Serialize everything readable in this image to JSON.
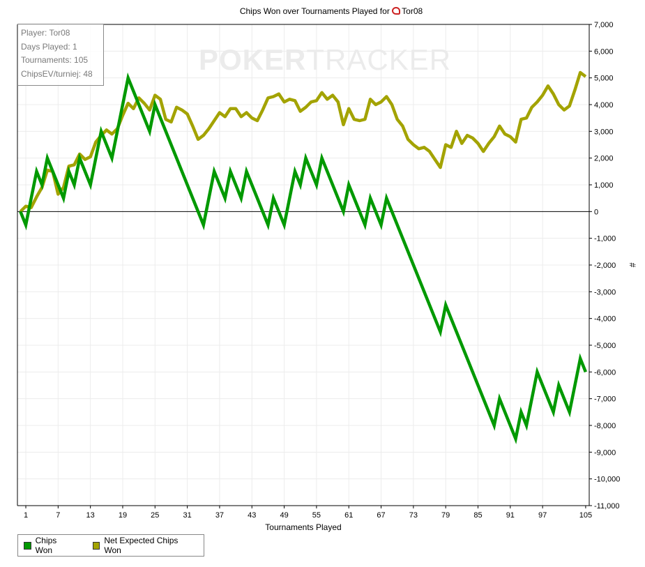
{
  "chart_data": {
    "type": "line",
    "title": "Chips Won over Tournaments Played for",
    "player_name": "Tor08",
    "xlabel": "Tournaments Played",
    "ylabel": "#",
    "xlim": [
      0,
      105
    ],
    "ylim": [
      -11000,
      7000
    ],
    "x_ticks": [
      1,
      7,
      13,
      19,
      25,
      31,
      37,
      43,
      49,
      55,
      61,
      67,
      73,
      79,
      85,
      91,
      97,
      105
    ],
    "y_ticks": [
      7000,
      6000,
      5000,
      4000,
      3000,
      2000,
      1000,
      0,
      -1000,
      -2000,
      -3000,
      -4000,
      -5000,
      -6000,
      -7000,
      -8000,
      -9000,
      -10000,
      -11000
    ],
    "y_tick_labels": [
      "7,000",
      "6,000",
      "5,000",
      "4,000",
      "3,000",
      "2,000",
      "1,000",
      "0",
      "-1,000",
      "-2,000",
      "-3,000",
      "-4,000",
      "-5,000",
      "-6,000",
      "-7,000",
      "-8,000",
      "-9,000",
      "-10,000",
      "-11,000"
    ],
    "grid": true,
    "legend_position": "bottom-left",
    "series": [
      {
        "name": "Chips Won",
        "color": "#009900",
        "points": [
          [
            0,
            0
          ],
          [
            1,
            -500
          ],
          [
            3,
            1500
          ],
          [
            4,
            1000
          ],
          [
            5,
            2000
          ],
          [
            8,
            500
          ],
          [
            9,
            1500
          ],
          [
            10,
            1000
          ],
          [
            11,
            2000
          ],
          [
            13,
            1000
          ],
          [
            15,
            3000
          ],
          [
            17,
            2000
          ],
          [
            20,
            5000
          ],
          [
            24,
            3000
          ],
          [
            25,
            4000
          ],
          [
            34,
            -500
          ],
          [
            36,
            1500
          ],
          [
            38,
            500
          ],
          [
            39,
            1500
          ],
          [
            41,
            500
          ],
          [
            42,
            1500
          ],
          [
            46,
            -500
          ],
          [
            47,
            500
          ],
          [
            49,
            -500
          ],
          [
            51,
            1500
          ],
          [
            52,
            1000
          ],
          [
            53,
            2000
          ],
          [
            55,
            1000
          ],
          [
            56,
            2000
          ],
          [
            60,
            0
          ],
          [
            61,
            1000
          ],
          [
            64,
            -500
          ],
          [
            65,
            500
          ],
          [
            67,
            -500
          ],
          [
            68,
            500
          ],
          [
            78,
            -4500
          ],
          [
            79,
            -3500
          ],
          [
            88,
            -8000
          ],
          [
            89,
            -7000
          ],
          [
            92,
            -8500
          ],
          [
            93,
            -7500
          ],
          [
            94,
            -8000
          ],
          [
            96,
            -6000
          ],
          [
            99,
            -7500
          ],
          [
            100,
            -6500
          ],
          [
            102,
            -7500
          ],
          [
            104,
            -5500
          ],
          [
            105,
            -6000
          ]
        ]
      },
      {
        "name": "Net Expected Chips Won",
        "color": "#a3a300",
        "values": [
          0,
          200,
          150,
          550,
          900,
          1550,
          1500,
          650,
          900,
          1700,
          1750,
          2150,
          1950,
          2050,
          2600,
          2850,
          3050,
          2900,
          3100,
          3600,
          4050,
          3850,
          4250,
          4050,
          3800,
          4350,
          4200,
          3450,
          3350,
          3900,
          3800,
          3650,
          3200,
          2700,
          2850,
          3100,
          3400,
          3700,
          3550,
          3850,
          3850,
          3550,
          3700,
          3500,
          3400,
          3800,
          4250,
          4300,
          4400,
          4100,
          4200,
          4150,
          3750,
          3900,
          4100,
          4150,
          4450,
          4200,
          4350,
          4100,
          3250,
          3850,
          3450,
          3400,
          3450,
          4200,
          4000,
          4100,
          4300,
          4000,
          3450,
          3200,
          2700,
          2500,
          2350,
          2400,
          2250,
          1950,
          1650,
          2500,
          2400,
          3000,
          2550,
          2850,
          2750,
          2550,
          2250,
          2550,
          2800,
          3200,
          2900,
          2800,
          2600,
          3450,
          3500,
          3900,
          4100,
          4350,
          4700,
          4400,
          4000,
          3800,
          3950,
          4550,
          5200,
          5050
        ]
      }
    ]
  },
  "info_box": {
    "player": "Player: Tor08",
    "days_played": "Days Played: 1",
    "tournaments": "Tournaments: 105",
    "chips_ev": "ChipsEV/turniej: 48"
  },
  "watermark": {
    "bold": "POKER",
    "thin": "TRACKER"
  }
}
